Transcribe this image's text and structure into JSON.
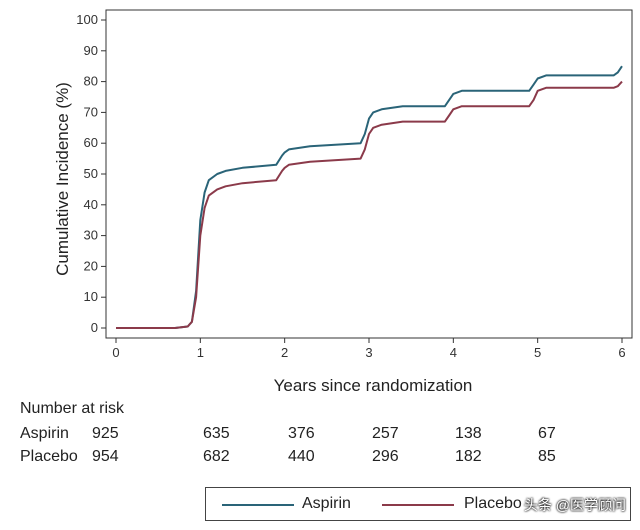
{
  "chart_data": {
    "type": "line",
    "title": "",
    "xlabel": "Years since randomization",
    "ylabel": "Cumulative Incidence (%)",
    "xlim": [
      0,
      6
    ],
    "ylim": [
      0,
      100
    ],
    "xticks": [
      "0",
      "1",
      "2",
      "3",
      "4",
      "5",
      "6"
    ],
    "yticks": [
      "0",
      "10",
      "20",
      "30",
      "40",
      "50",
      "60",
      "70",
      "80",
      "90",
      "100"
    ],
    "grid": false,
    "series": [
      {
        "name": "Aspirin",
        "color": "#2a6478",
        "x": [
          0,
          0.7,
          0.85,
          0.9,
          0.95,
          1.0,
          1.05,
          1.1,
          1.2,
          1.3,
          1.5,
          1.9,
          1.97,
          2.0,
          2.05,
          2.3,
          2.9,
          2.95,
          3.0,
          3.05,
          3.15,
          3.4,
          3.9,
          3.95,
          4.0,
          4.1,
          4.9,
          4.95,
          5.0,
          5.1,
          5.9,
          5.95,
          6.0
        ],
        "y": [
          0,
          0,
          0.5,
          2,
          12,
          35,
          44,
          48,
          50,
          51,
          52,
          53,
          56,
          57,
          58,
          59,
          60,
          63,
          68,
          70,
          71,
          72,
          72,
          74,
          76,
          77,
          77,
          79,
          81,
          82,
          82,
          83,
          85
        ]
      },
      {
        "name": "Placebo",
        "color": "#8b3a4a",
        "x": [
          0,
          0.7,
          0.85,
          0.9,
          0.95,
          1.0,
          1.05,
          1.1,
          1.2,
          1.3,
          1.5,
          1.9,
          1.97,
          2.0,
          2.05,
          2.3,
          2.9,
          2.95,
          3.0,
          3.05,
          3.15,
          3.4,
          3.9,
          3.95,
          4.0,
          4.1,
          4.9,
          4.95,
          5.0,
          5.1,
          5.9,
          5.95,
          6.0
        ],
        "y": [
          0,
          0,
          0.5,
          2,
          10,
          30,
          39,
          43,
          45,
          46,
          47,
          48,
          51,
          52,
          53,
          54,
          55,
          58,
          63,
          65,
          66,
          67,
          67,
          69,
          71,
          72,
          72,
          74,
          77,
          78,
          78,
          78.5,
          80
        ]
      }
    ]
  },
  "risk_table": {
    "header": "Number at risk",
    "rows": [
      {
        "label": "Aspirin",
        "values": [
          "925",
          "635",
          "376",
          "257",
          "138",
          "67"
        ]
      },
      {
        "label": "Placebo",
        "values": [
          "954",
          "682",
          "440",
          "296",
          "182",
          "85"
        ]
      }
    ]
  },
  "legend": {
    "items": [
      {
        "label": "Aspirin",
        "color": "#2a6478"
      },
      {
        "label": "Placebo",
        "color": "#8b3a4a"
      }
    ]
  },
  "watermark": {
    "text": "头条 @医学顾问"
  }
}
